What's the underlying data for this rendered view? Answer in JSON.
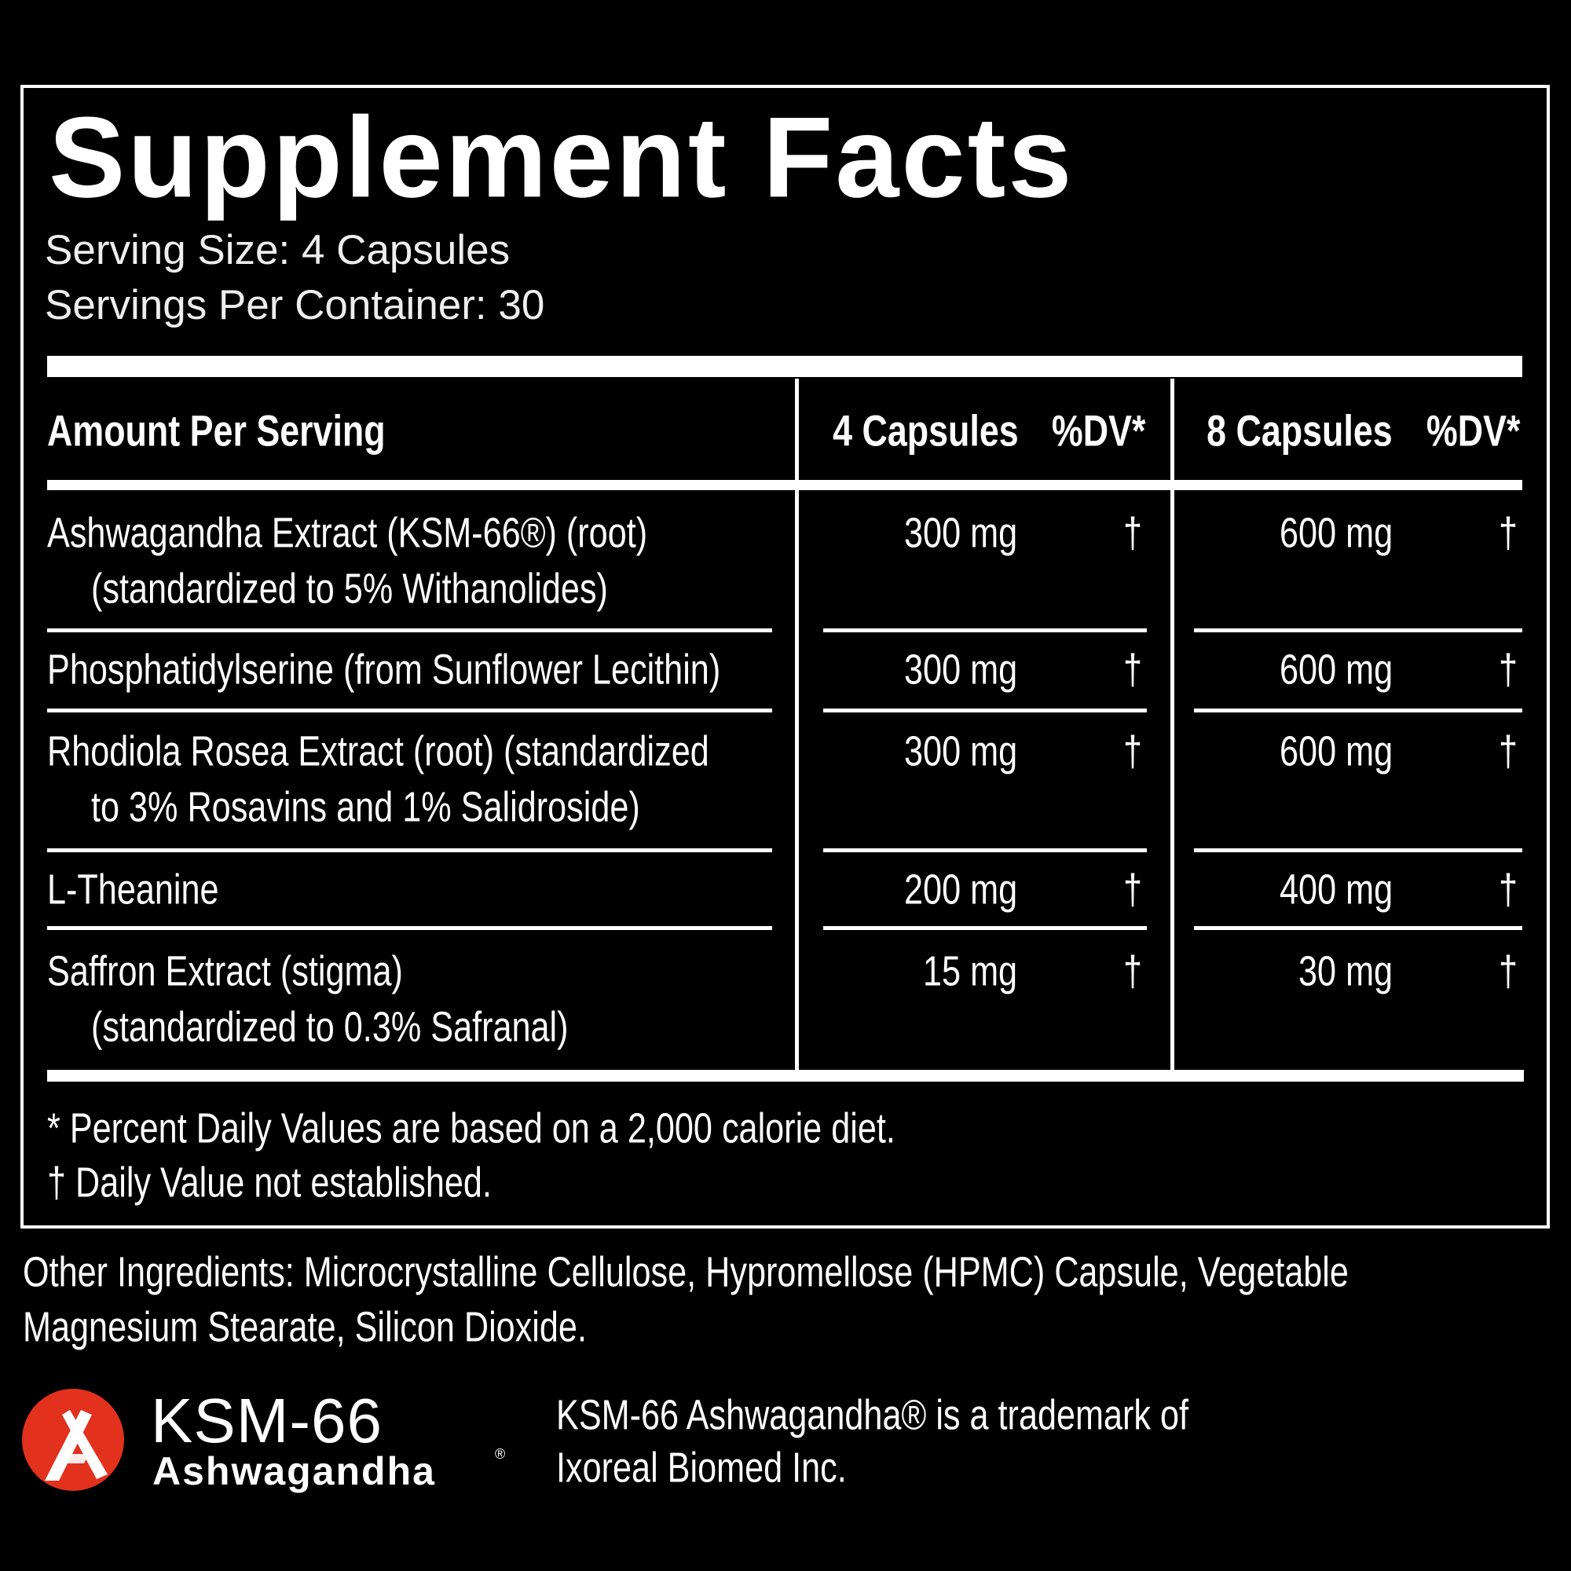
{
  "title": "Supplement Facts",
  "serving_size": "Serving Size: 4 Capsules",
  "servings_per_container": "Servings Per Container: 30",
  "header": {
    "amount_per_serving": "Amount Per Serving",
    "col1_label": "4 Capsules",
    "col1_dv": "%DV*",
    "col2_label": "8 Capsules",
    "col2_dv": "%DV*"
  },
  "rows": [
    {
      "name_line1": "Ashwagandha Extract (KSM-66®) (root)",
      "name_line2": "(standardized to 5% Withanolides)",
      "amount1": "300 mg",
      "dv1": "†",
      "amount2": "600 mg",
      "dv2": "†"
    },
    {
      "name_line1": "Phosphatidylserine (from Sunflower Lecithin)",
      "name_line2": "",
      "amount1": "300 mg",
      "dv1": "†",
      "amount2": "600 mg",
      "dv2": "†"
    },
    {
      "name_line1": "Rhodiola Rosea Extract (root) (standardized",
      "name_line2": "to 3% Rosavins and 1% Salidroside)",
      "amount1": "300 mg",
      "dv1": "†",
      "amount2": "600 mg",
      "dv2": "†"
    },
    {
      "name_line1": "L-Theanine",
      "name_line2": "",
      "amount1": "200 mg",
      "dv1": "†",
      "amount2": "400 mg",
      "dv2": "†"
    },
    {
      "name_line1": "Saffron Extract (stigma)",
      "name_line2": "(standardized to 0.3% Safranal)",
      "amount1": "15 mg",
      "dv1": "†",
      "amount2": "30 mg",
      "dv2": "†"
    }
  ],
  "footnotes": [
    "* Percent Daily Values are based on a 2,000 calorie diet.",
    "† Daily Value not established."
  ],
  "other_ingredients": [
    "Other Ingredients: Microcrystalline Cellulose, Hypromellose (HPMC) Capsule, Vegetable",
    "Magnesium Stearate, Silicon Dioxide."
  ],
  "logo": {
    "line1": "KSM-66",
    "line2": "Ashwagandha",
    "mark": "®",
    "color": "#e2311d"
  },
  "trademark": [
    "KSM-66 Ashwagandha® is a trademark of",
    "Ixoreal Biomed Inc."
  ]
}
